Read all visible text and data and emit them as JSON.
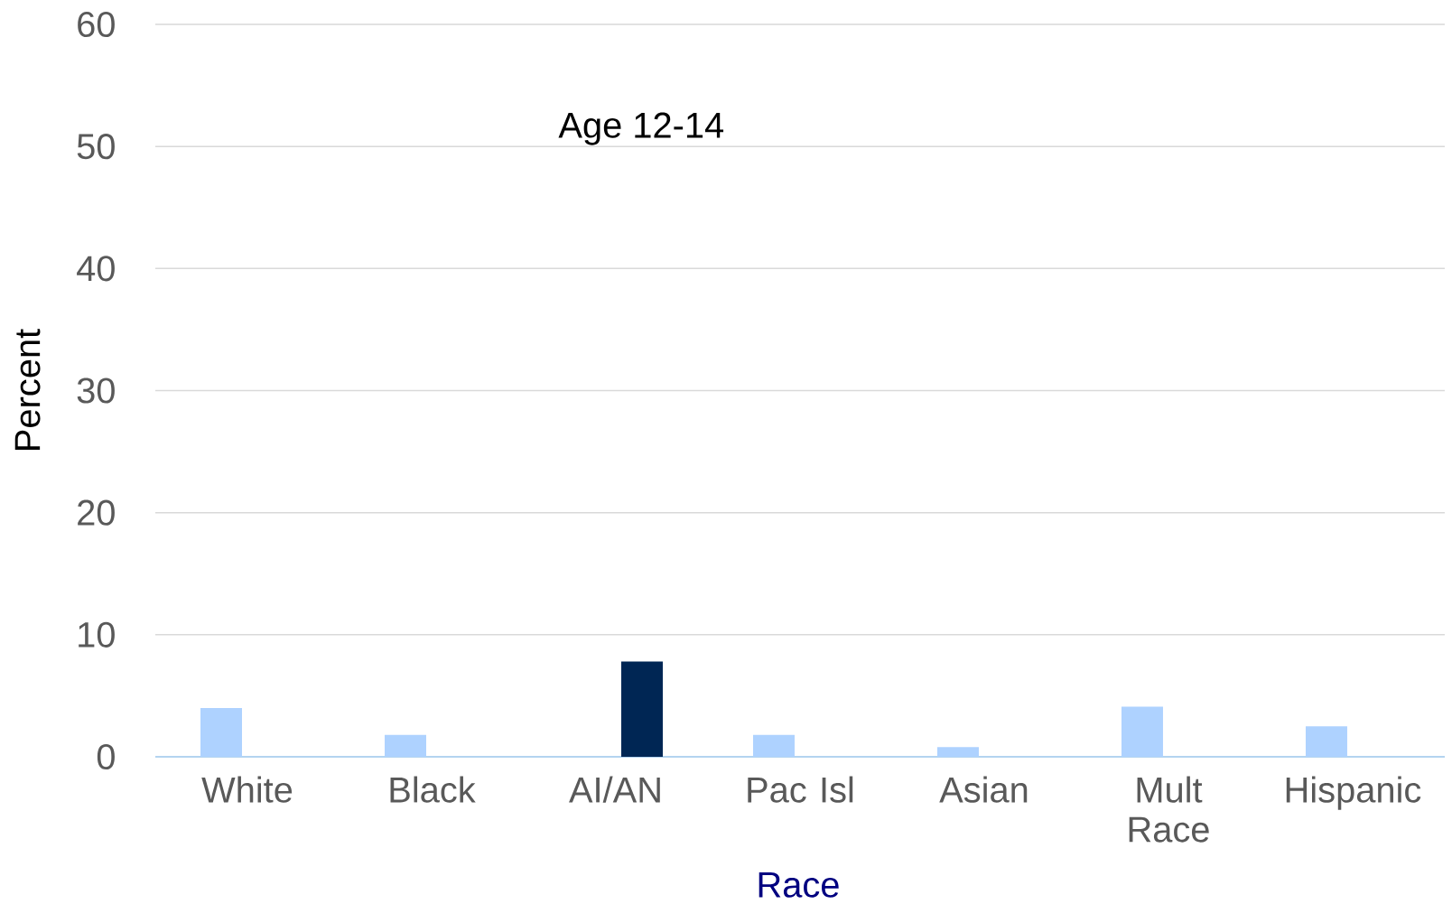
{
  "chart_data": {
    "type": "bar",
    "title": "Age 12-14",
    "xlabel": "Race",
    "ylabel": "Percent",
    "categories": [
      "White",
      "Black",
      "AI/AN",
      "Pac Isl",
      "Asian",
      "Mult Race",
      "Hispanic"
    ],
    "series": [
      {
        "color": "#aed2ff",
        "values": [
          4.0,
          1.8,
          null,
          1.8,
          0.8,
          4.1,
          2.5
        ]
      },
      {
        "color": "#002654",
        "values": [
          null,
          null,
          7.8,
          null,
          null,
          null,
          null
        ]
      }
    ],
    "ylim": [
      0,
      60
    ],
    "yticks": [
      0,
      10,
      20,
      30,
      40,
      50,
      60
    ],
    "grid": "y"
  }
}
